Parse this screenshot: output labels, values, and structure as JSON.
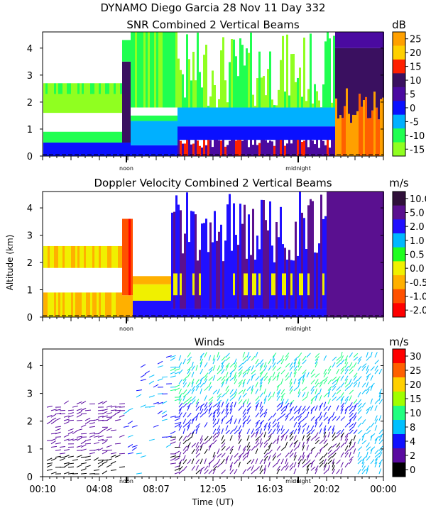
{
  "figure": {
    "title": "DYNAMO Diego Garcia  28 Nov 11 Day 332",
    "ylabel": "Altitude (km)",
    "xlabel": "Time (UT)"
  },
  "chart_data": [
    {
      "type": "heatmap",
      "title": "SNR Combined 2 Vertical Beams",
      "colorbar_unit": "dB",
      "colorbar_ticks": [
        "25",
        "20",
        "15",
        "10",
        "5",
        "0",
        "-5",
        "-10",
        "-15"
      ],
      "colorbar_colors": [
        "#ffa000",
        "#ffd000",
        "#ff2000",
        "#3a1060",
        "#4a0aa0",
        "#0a10ff",
        "#00b0ff",
        "#20ff50",
        "#90ff20"
      ],
      "yticks": [
        0,
        1,
        2,
        3,
        4
      ],
      "ylim": [
        0,
        4.6
      ],
      "x_marks": [
        "noon",
        "midnight"
      ]
    },
    {
      "type": "heatmap",
      "title": "Doppler Velocity Combined 2 Vertical Beams",
      "colorbar_unit": "m/s",
      "colorbar_ticks": [
        "10.0",
        "5.0",
        "2.0",
        "1.0",
        "0.5",
        "0.0",
        "-0.5",
        "-1.0",
        "-2.0"
      ],
      "colorbar_colors": [
        "#30103a",
        "#5a1090",
        "#2010ff",
        "#00b8ff",
        "#20ff20",
        "#f0f000",
        "#ffb000",
        "#ff5000",
        "#ff0000"
      ],
      "yticks": [
        0,
        1,
        2,
        3,
        4
      ],
      "ylim": [
        0,
        4.6
      ],
      "x_marks": [
        "noon",
        "midnight"
      ]
    },
    {
      "type": "scatter",
      "title": "Winds",
      "colorbar_unit": "m/s",
      "colorbar_ticks": [
        "30",
        "25",
        "20",
        "15",
        "10",
        "8",
        "4",
        "2",
        "0"
      ],
      "colorbar_colors": [
        "#ff0000",
        "#ff6000",
        "#ffd000",
        "#a0ff00",
        "#20ff80",
        "#00c0ff",
        "#1010ff",
        "#5a0aa0",
        "#000000"
      ],
      "yticks": [
        0,
        1,
        2,
        3,
        4
      ],
      "ylim": [
        0,
        4.6
      ],
      "x_marks": [
        "noon",
        "midnight"
      ],
      "xtick_labels": [
        "00:10",
        "04:08",
        "08:07",
        "12:05",
        "16:03",
        "20:02",
        "00:00"
      ]
    }
  ]
}
